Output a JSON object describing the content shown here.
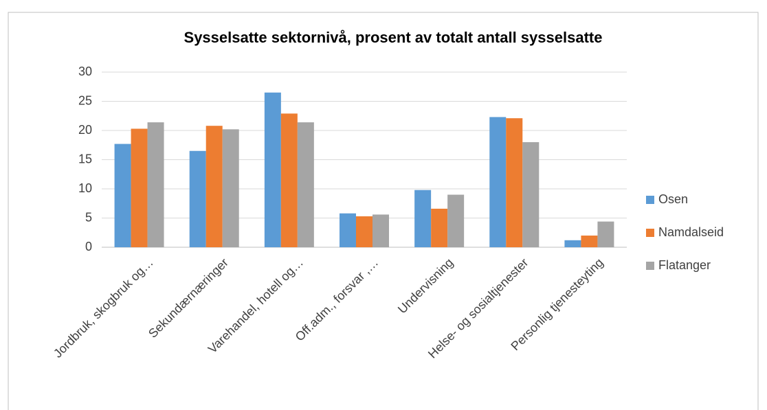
{
  "chart_data": {
    "type": "bar",
    "title": "Sysselsatte sektornivå, prosent av totalt antall sysselsatte",
    "categories": [
      "Jordbruk, skogbruk og…",
      "Sekundærnæringer",
      "Varehandel, hotell og…",
      "Off.adm., forsvar ,…",
      "Undervisning",
      "Helse- og sosialtjenester",
      "Personlig tjenesteyting"
    ],
    "series": [
      {
        "name": "Osen",
        "color": "#5b9bd5",
        "values": [
          17.7,
          16.5,
          26.5,
          5.8,
          9.8,
          22.3,
          1.2
        ]
      },
      {
        "name": "Namdalseid",
        "color": "#ed7d31",
        "values": [
          20.3,
          20.8,
          22.9,
          5.3,
          6.6,
          22.1,
          2.0
        ]
      },
      {
        "name": "Flatanger",
        "color": "#a5a5a5",
        "values": [
          21.4,
          20.2,
          21.4,
          5.6,
          9.0,
          18.0,
          4.4
        ]
      }
    ],
    "ylim": [
      0,
      30
    ],
    "yticks": [
      0,
      5,
      10,
      15,
      20,
      25,
      30
    ],
    "grid": true,
    "legend": "right"
  }
}
